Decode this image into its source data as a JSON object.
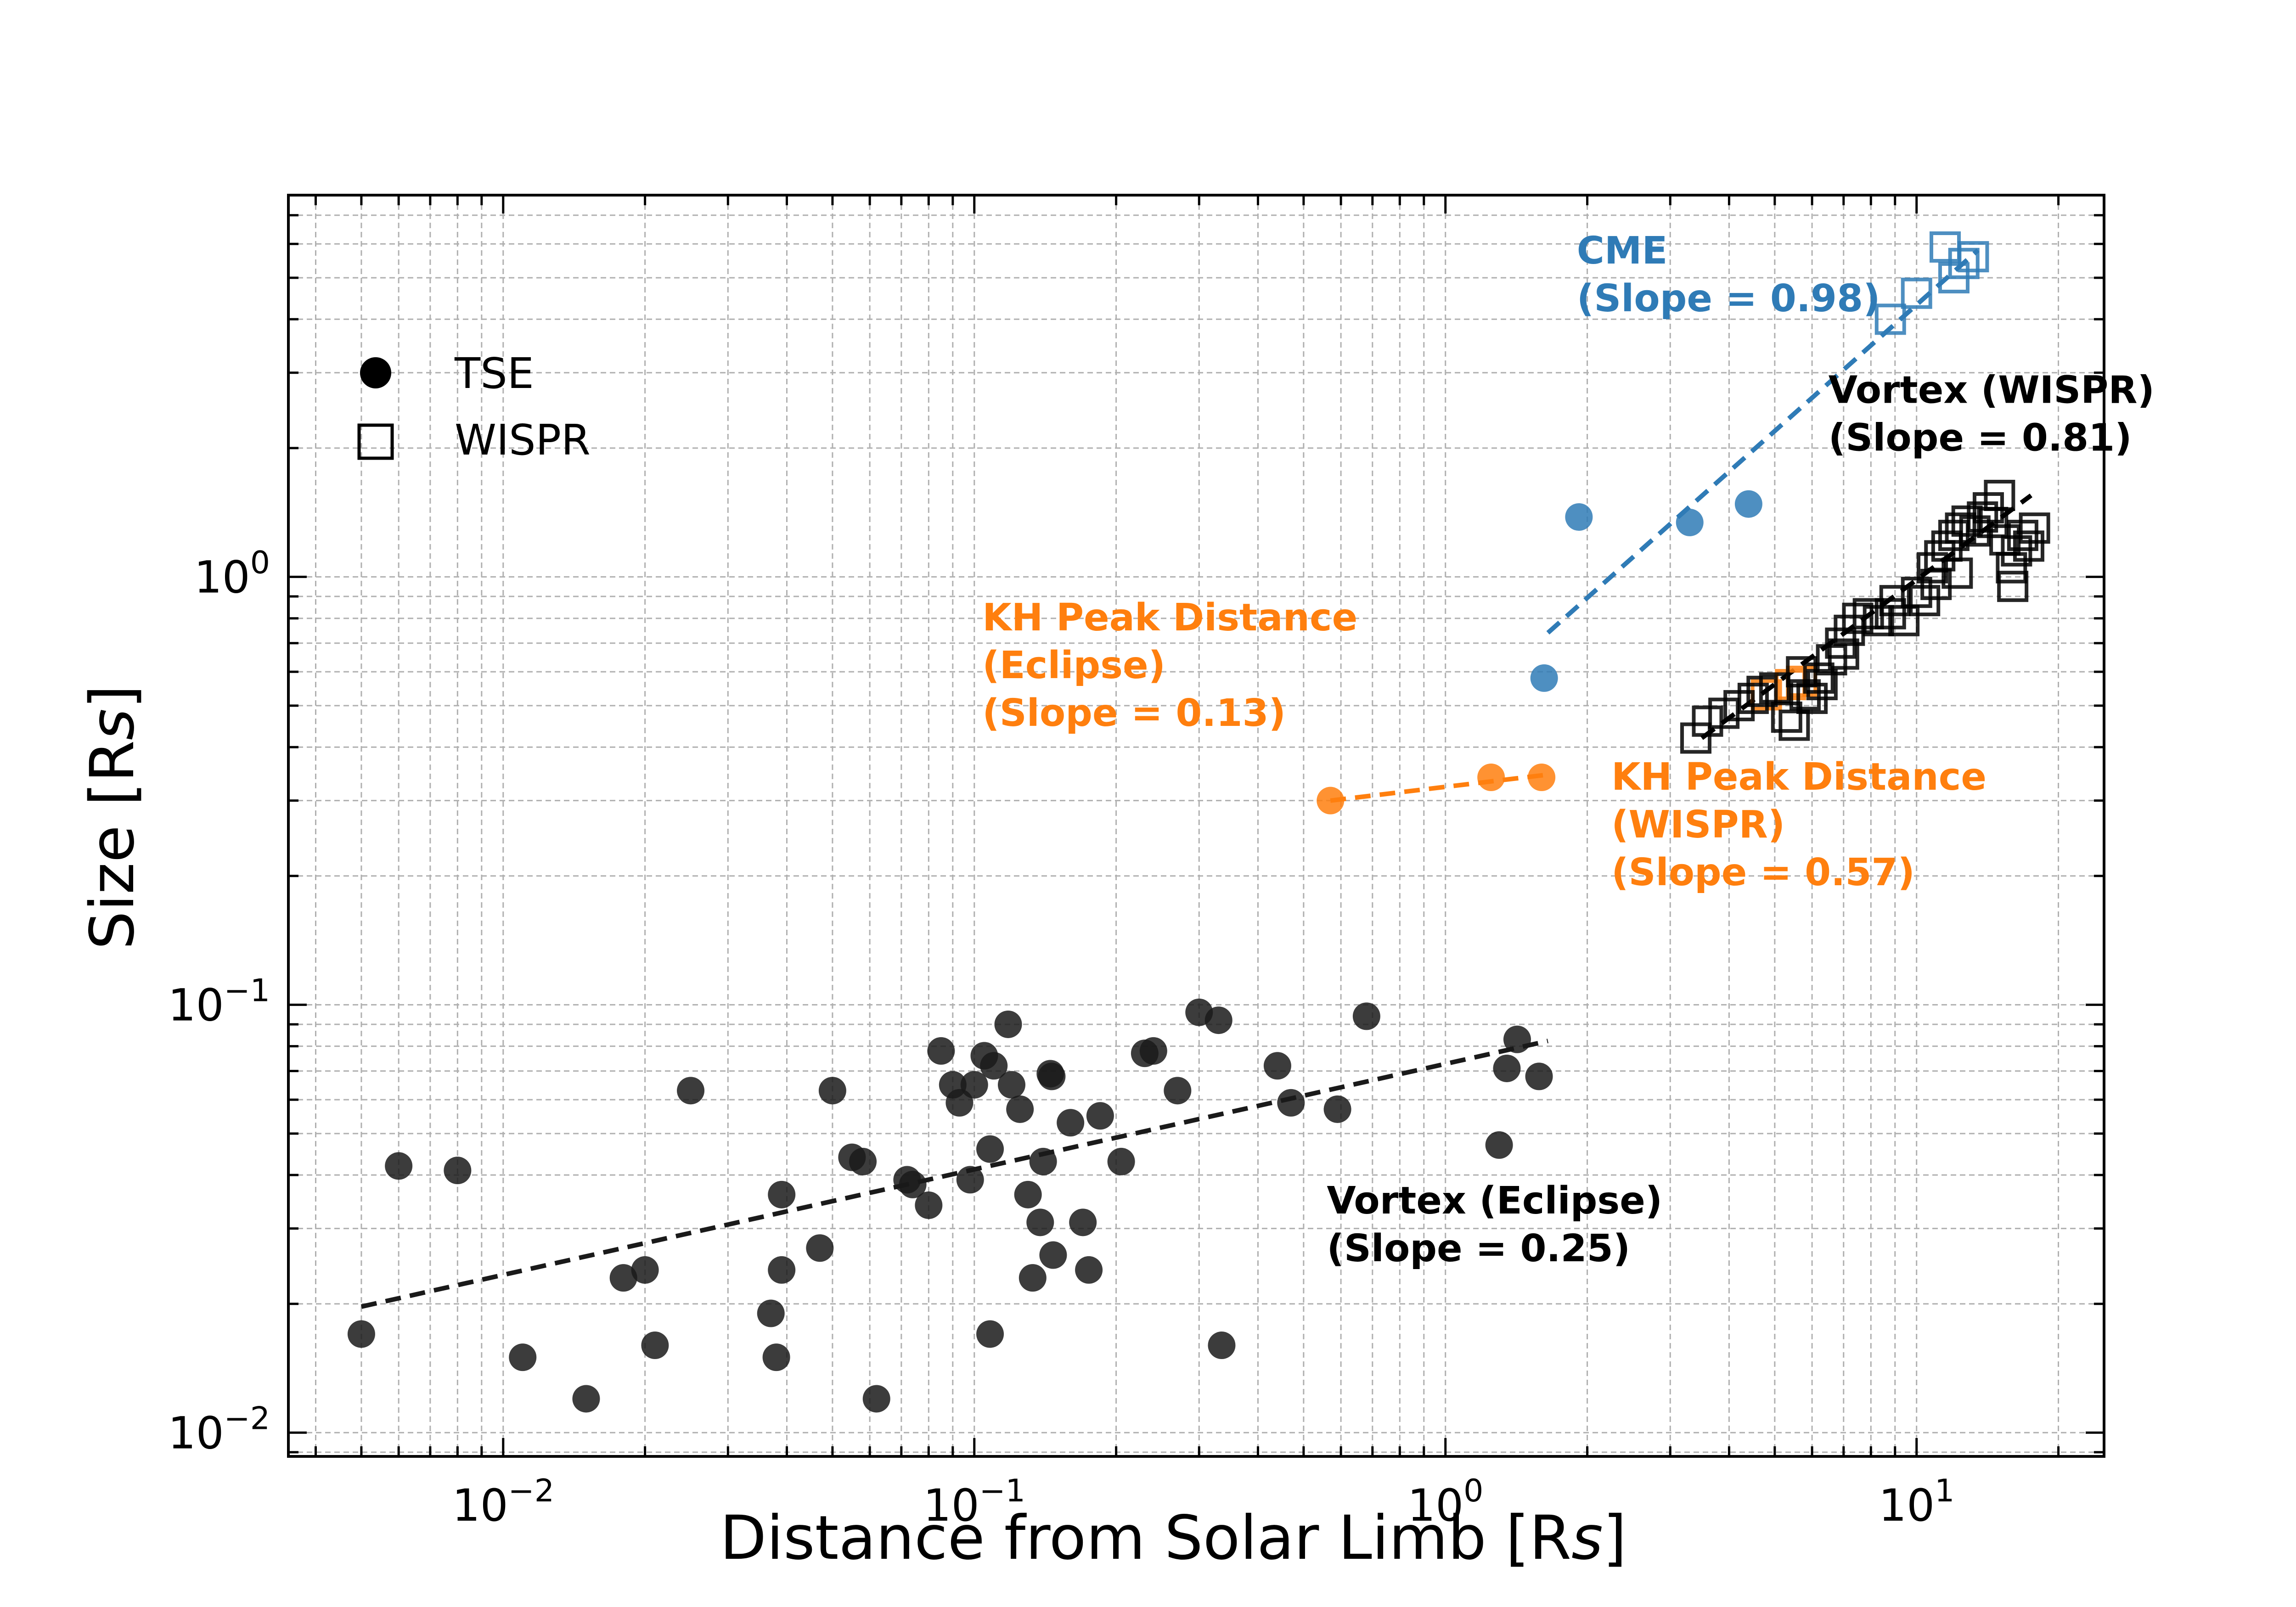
{
  "chart_data": {
    "type": "scatter",
    "title": "",
    "xlabel": "Distance from Solar Limb [R",
    "xlabel_sub": "s",
    "xlabel_close": "]",
    "ylabel": "Size [R",
    "ylabel_sub": "s",
    "ylabel_close": "]",
    "xscale": "log",
    "yscale": "log",
    "xlim": [
      0.0035,
      25
    ],
    "ylim": [
      0.0088,
      7.8
    ],
    "grid": true,
    "x_ticks": [
      {
        "value": 0.01,
        "base": "10",
        "exp": "−2"
      },
      {
        "value": 0.1,
        "base": "10",
        "exp": "−1"
      },
      {
        "value": 1,
        "base": "10",
        "exp": "0"
      },
      {
        "value": 10,
        "base": "10",
        "exp": "1"
      }
    ],
    "y_ticks": [
      {
        "value": 0.01,
        "base": "10",
        "exp": "−2"
      },
      {
        "value": 0.1,
        "base": "10",
        "exp": "−1"
      },
      {
        "value": 1,
        "base": "10",
        "exp": "0"
      }
    ],
    "colors": {
      "tse_black": "#1a1a1a",
      "cme_blue": "#2f7bb6",
      "kh_orange": "#ff7f0e",
      "wispr_black": "#000000"
    },
    "legend": {
      "position": "upper-left",
      "entries": [
        {
          "label": "TSE",
          "marker": "circle"
        },
        {
          "label": "WISPR",
          "marker": "square"
        }
      ]
    },
    "series": [
      {
        "name": "Vortex (Eclipse)",
        "instrument": "TSE",
        "marker": "circle",
        "color": "#1a1a1a",
        "points": [
          [
            0.005,
            0.017
          ],
          [
            0.006,
            0.042
          ],
          [
            0.008,
            0.041
          ],
          [
            0.011,
            0.015
          ],
          [
            0.015,
            0.012
          ],
          [
            0.018,
            0.023
          ],
          [
            0.02,
            0.024
          ],
          [
            0.021,
            0.016
          ],
          [
            0.025,
            0.063
          ],
          [
            0.037,
            0.019
          ],
          [
            0.038,
            0.015
          ],
          [
            0.039,
            0.036
          ],
          [
            0.039,
            0.024
          ],
          [
            0.047,
            0.027
          ],
          [
            0.05,
            0.063
          ],
          [
            0.055,
            0.044
          ],
          [
            0.058,
            0.043
          ],
          [
            0.062,
            0.012
          ],
          [
            0.072,
            0.039
          ],
          [
            0.074,
            0.038
          ],
          [
            0.08,
            0.034
          ],
          [
            0.085,
            0.078
          ],
          [
            0.09,
            0.065
          ],
          [
            0.093,
            0.059
          ],
          [
            0.098,
            0.039
          ],
          [
            0.1,
            0.065
          ],
          [
            0.105,
            0.076
          ],
          [
            0.108,
            0.046
          ],
          [
            0.11,
            0.072
          ],
          [
            0.118,
            0.09
          ],
          [
            0.12,
            0.065
          ],
          [
            0.125,
            0.057
          ],
          [
            0.13,
            0.036
          ],
          [
            0.133,
            0.023
          ],
          [
            0.138,
            0.031
          ],
          [
            0.14,
            0.043
          ],
          [
            0.145,
            0.069
          ],
          [
            0.146,
            0.068
          ],
          [
            0.147,
            0.026
          ],
          [
            0.16,
            0.053
          ],
          [
            0.17,
            0.031
          ],
          [
            0.175,
            0.024
          ],
          [
            0.185,
            0.055
          ],
          [
            0.205,
            0.043
          ],
          [
            0.23,
            0.077
          ],
          [
            0.24,
            0.078
          ],
          [
            0.27,
            0.063
          ],
          [
            0.3,
            0.096
          ],
          [
            0.33,
            0.092
          ],
          [
            0.335,
            0.016
          ],
          [
            0.44,
            0.072
          ],
          [
            0.47,
            0.059
          ],
          [
            0.59,
            0.057
          ],
          [
            0.68,
            0.094
          ],
          [
            0.108,
            0.017
          ],
          [
            1.3,
            0.047
          ],
          [
            1.35,
            0.071
          ],
          [
            1.42,
            0.083
          ],
          [
            1.58,
            0.068
          ]
        ],
        "fit": {
          "slope": 0.25,
          "x_range": [
            0.005,
            1.65
          ],
          "y_range": [
            0.0197,
            0.0823
          ]
        }
      },
      {
        "name": "CME",
        "instrument": "TSE",
        "marker": "circle",
        "color": "#2f7bb6",
        "points": [
          [
            1.62,
            0.58
          ],
          [
            1.92,
            1.38
          ],
          [
            3.3,
            1.34
          ],
          [
            4.4,
            1.48
          ]
        ]
      },
      {
        "name": "CME",
        "instrument": "WISPR",
        "marker": "square",
        "color": "#2f7bb6",
        "points": [
          [
            8.8,
            4.0
          ],
          [
            10.0,
            4.6
          ],
          [
            11.5,
            5.9
          ],
          [
            12.0,
            5.0
          ],
          [
            12.6,
            5.4
          ],
          [
            13.2,
            5.6
          ]
        ],
        "fit": {
          "slope": 0.98,
          "x_range": [
            1.65,
            13.5
          ],
          "y_range": [
            0.74,
            5.8
          ]
        }
      },
      {
        "name": "KH Peak Distance (Eclipse)",
        "instrument": "TSE",
        "marker": "circle",
        "color": "#ff7f0e",
        "points": [
          [
            0.57,
            0.3
          ],
          [
            1.25,
            0.34
          ],
          [
            1.6,
            0.34
          ]
        ],
        "fit": {
          "slope": 0.13,
          "x_range": [
            0.57,
            1.65
          ],
          "y_range": [
            0.3,
            0.345
          ]
        }
      },
      {
        "name": "KH Peak Distance (WISPR)",
        "instrument": "WISPR",
        "marker": "square",
        "color": "#ff7f0e",
        "points": [
          [
            4.8,
            0.53
          ],
          [
            5.4,
            0.56
          ],
          [
            5.7,
            0.57
          ]
        ]
      },
      {
        "name": "Vortex (WISPR)",
        "instrument": "WISPR",
        "marker": "square",
        "color": "#000000",
        "points": [
          [
            3.4,
            0.42
          ],
          [
            3.6,
            0.46
          ],
          [
            3.9,
            0.48
          ],
          [
            4.2,
            0.5
          ],
          [
            4.5,
            0.52
          ],
          [
            4.7,
            0.54
          ],
          [
            5.0,
            0.55
          ],
          [
            5.3,
            0.47
          ],
          [
            5.5,
            0.45
          ],
          [
            5.7,
            0.6
          ],
          [
            5.8,
            0.53
          ],
          [
            6.0,
            0.52
          ],
          [
            6.3,
            0.56
          ],
          [
            6.6,
            0.64
          ],
          [
            6.9,
            0.7
          ],
          [
            7.2,
            0.75
          ],
          [
            7.5,
            0.8
          ],
          [
            7.9,
            0.82
          ],
          [
            8.3,
            0.79
          ],
          [
            8.8,
            0.82
          ],
          [
            9.4,
            0.79
          ],
          [
            10.0,
            0.92
          ],
          [
            10.4,
            0.88
          ],
          [
            10.8,
            1.05
          ],
          [
            11.2,
            1.12
          ],
          [
            11.6,
            1.18
          ],
          [
            12.0,
            1.25
          ],
          [
            12.4,
            1.3
          ],
          [
            12.8,
            1.35
          ],
          [
            13.3,
            1.28
          ],
          [
            13.8,
            1.38
          ],
          [
            14.5,
            1.34
          ],
          [
            15.0,
            1.55
          ],
          [
            15.4,
            1.22
          ],
          [
            15.9,
            1.05
          ],
          [
            16.3,
            1.15
          ],
          [
            16.8,
            1.25
          ],
          [
            17.3,
            1.18
          ],
          [
            17.8,
            1.3
          ],
          [
            16.0,
            0.95
          ],
          [
            14.2,
            1.45
          ],
          [
            12.2,
            1.02
          ],
          [
            11.0,
            0.96
          ],
          [
            9.0,
            0.88
          ],
          [
            7.0,
            0.66
          ],
          [
            6.2,
            0.58
          ]
        ],
        "fit": {
          "slope": 0.81,
          "x_range": [
            3.5,
            17.5
          ],
          "y_range": [
            0.42,
            1.55
          ]
        }
      }
    ],
    "annotations": [
      {
        "lines": [
          "CME",
          "(Slope = 0.98)"
        ],
        "color": "#2f7bb6",
        "x": 1.9,
        "y": 5.4
      },
      {
        "lines": [
          "Vortex (WISPR)",
          "(Slope = 0.81)"
        ],
        "color": "#000000",
        "x": 6.5,
        "y": 2.55
      },
      {
        "lines": [
          "KH Peak Distance",
          "(Eclipse)",
          "(Slope = 0.13)"
        ],
        "color": "#ff7f0e",
        "x": 0.104,
        "y": 0.75
      },
      {
        "lines": [
          "KH Peak Distance",
          "(WISPR)",
          "(Slope = 0.57)"
        ],
        "color": "#ff7f0e",
        "x": 2.25,
        "y": 0.318
      },
      {
        "lines": [
          "Vortex (Eclipse)",
          "(Slope = 0.25)"
        ],
        "color": "#000000",
        "x": 0.56,
        "y": 0.0325
      }
    ]
  }
}
